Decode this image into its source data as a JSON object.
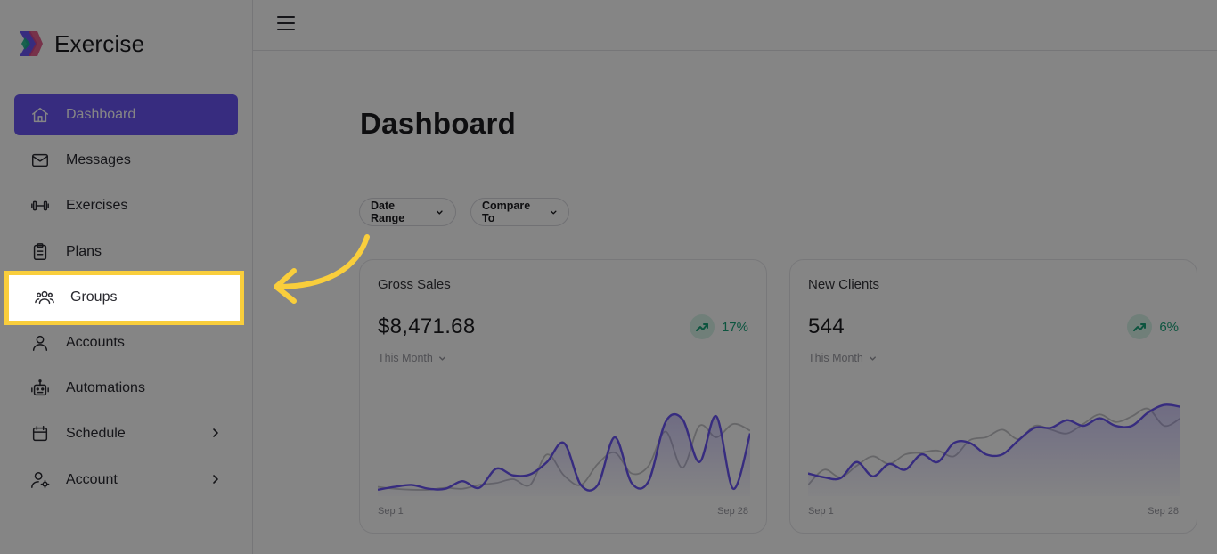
{
  "brand": {
    "name": "Exercise"
  },
  "sidebar": {
    "items": [
      {
        "label": "Dashboard",
        "icon": "home-icon",
        "active": true
      },
      {
        "label": "Messages",
        "icon": "mail-icon"
      },
      {
        "label": "Exercises",
        "icon": "dumbbell-icon"
      },
      {
        "label": "Plans",
        "icon": "clipboard-icon"
      },
      {
        "label": "Groups",
        "icon": "users-icon",
        "highlighted": true
      },
      {
        "label": "Accounts",
        "icon": "user-icon"
      },
      {
        "label": "Automations",
        "icon": "robot-icon"
      },
      {
        "label": "Schedule",
        "icon": "calendar-icon",
        "has_submenu": true
      },
      {
        "label": "Account",
        "icon": "user-gear-icon",
        "has_submenu": true
      }
    ]
  },
  "main": {
    "title": "Dashboard",
    "filters": {
      "date_range": "Date Range",
      "compare_to": "Compare To"
    },
    "cards": [
      {
        "title": "Gross Sales",
        "value": "$8,471.68",
        "delta": "17%",
        "period": "This Month",
        "x_start": "Sep 1",
        "x_end": "Sep 28"
      },
      {
        "title": "New Clients",
        "value": "544",
        "delta": "6%",
        "period": "This Month",
        "x_start": "Sep 1",
        "x_end": "Sep 28"
      }
    ]
  },
  "colors": {
    "accent": "#6a55f4",
    "highlight": "#f9ce3c",
    "positive": "#1aa37a",
    "compare_line": "#c4c4c8"
  },
  "chart_data": [
    {
      "type": "area",
      "title": "Gross Sales",
      "x_range": [
        "Sep 1",
        "Sep 28"
      ],
      "series": [
        {
          "values": [
            3,
            6,
            8,
            4,
            4,
            12,
            5,
            25,
            18,
            19,
            32,
            52,
            8,
            8,
            58,
            10,
            12,
            74,
            77,
            32,
            80,
            4,
            62
          ],
          "color": "#6a55f4",
          "filled": true
        },
        {
          "values": [
            6,
            4,
            3,
            3,
            5,
            4,
            8,
            10,
            14,
            8,
            40,
            18,
            8,
            30,
            42,
            20,
            28,
            64,
            26,
            70,
            58,
            72,
            65
          ],
          "color": "#c4c4c8"
        }
      ]
    },
    {
      "type": "area",
      "title": "New Clients",
      "x_range": [
        "Sep 1",
        "Sep 28"
      ],
      "series": [
        {
          "values": [
            20,
            16,
            15,
            32,
            17,
            30,
            24,
            40,
            32,
            52,
            52,
            40,
            40,
            55,
            68,
            68,
            76,
            70,
            78,
            70,
            70,
            84,
            92,
            90
          ],
          "color": "#6a55f4",
          "filled": true
        },
        {
          "values": [
            8,
            24,
            16,
            28,
            38,
            30,
            40,
            42,
            44,
            38,
            55,
            58,
            66,
            56,
            70,
            66,
            62,
            72,
            82,
            74,
            80,
            88,
            70,
            78
          ],
          "color": "#c4c4c8"
        }
      ]
    }
  ]
}
